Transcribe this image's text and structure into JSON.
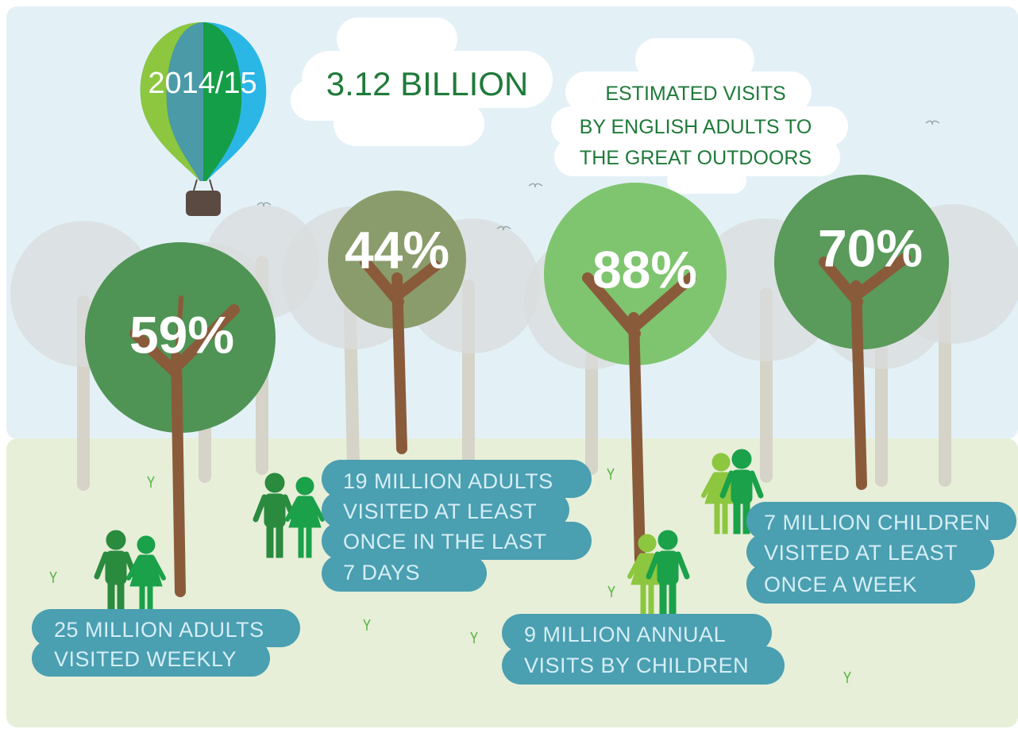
{
  "balloon": {
    "year": "2014/15"
  },
  "headline": {
    "value": "3.12 BILLION",
    "subtitle": [
      "ESTIMATED VISITS",
      "BY ENGLISH ADULTS TO",
      "THE GREAT OUTDOORS"
    ]
  },
  "trees": [
    {
      "percent": "59%",
      "caption": [
        "25 MILLION ADULTS",
        "VISITED WEEKLY"
      ]
    },
    {
      "percent": "44%",
      "caption": [
        "19 MILLION ADULTS",
        "VISITED AT LEAST",
        "ONCE IN THE LAST",
        "7 DAYS"
      ]
    },
    {
      "percent": "88%",
      "caption": [
        "9 MILLION ANNUAL",
        "VISITS BY CHILDREN"
      ]
    },
    {
      "percent": "70%",
      "caption": [
        "7 MILLION CHILDREN",
        "VISITED AT LEAST",
        "ONCE A WEEK"
      ]
    }
  ]
}
